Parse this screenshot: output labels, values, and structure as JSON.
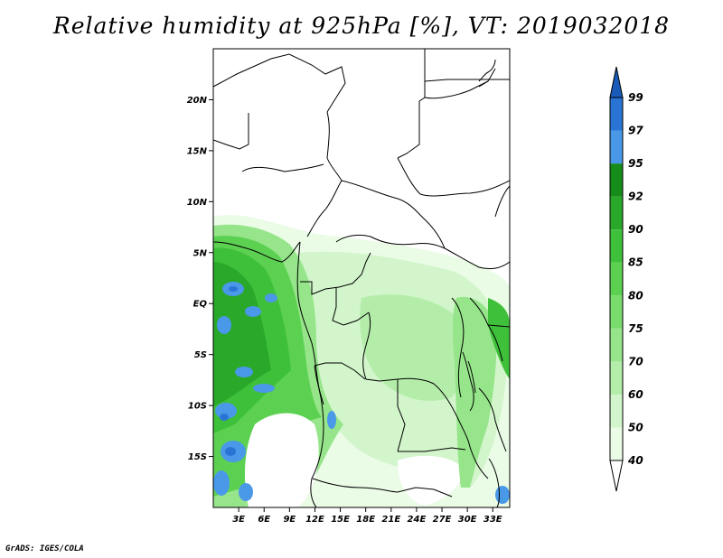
{
  "title": "Relative humidity at 925hPa [%], VT: 2019032018",
  "credit": "GrADS: IGES/COLA",
  "map": {
    "lon_range": [
      0,
      35
    ],
    "lat_range": [
      -20,
      25
    ],
    "lat_ticks": [
      {
        "value": 20,
        "label": "20N"
      },
      {
        "value": 15,
        "label": "15N"
      },
      {
        "value": 10,
        "label": "10N"
      },
      {
        "value": 5,
        "label": "5N"
      },
      {
        "value": 0,
        "label": "EQ"
      },
      {
        "value": -5,
        "label": "5S"
      },
      {
        "value": -10,
        "label": "10S"
      },
      {
        "value": -15,
        "label": "15S"
      }
    ],
    "lon_ticks": [
      {
        "value": 3,
        "label": "3E"
      },
      {
        "value": 6,
        "label": "6E"
      },
      {
        "value": 9,
        "label": "9E"
      },
      {
        "value": 12,
        "label": "12E"
      },
      {
        "value": 15,
        "label": "15E"
      },
      {
        "value": 18,
        "label": "18E"
      },
      {
        "value": 21,
        "label": "21E"
      },
      {
        "value": 24,
        "label": "24E"
      },
      {
        "value": 27,
        "label": "27E"
      },
      {
        "value": 30,
        "label": "30E"
      },
      {
        "value": 33,
        "label": "33E"
      }
    ]
  },
  "colorbar": {
    "labels": [
      "40",
      "50",
      "60",
      "70",
      "75",
      "80",
      "85",
      "90",
      "92",
      "95",
      "97",
      "99"
    ],
    "colors": [
      "#ffffff",
      "#eafbe6",
      "#d2f5cb",
      "#b4edaa",
      "#96e58a",
      "#78dd6c",
      "#5cd151",
      "#3fc03a",
      "#2aa82a",
      "#168c1a",
      "#4a98e8",
      "#2a74d6",
      "#1a5ab8"
    ]
  }
}
